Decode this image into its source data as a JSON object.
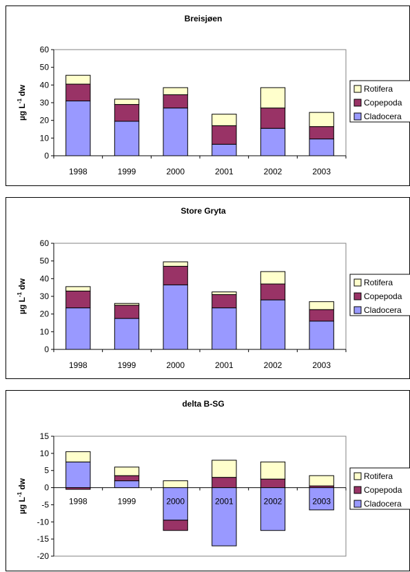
{
  "colors": {
    "rotifera": "#FFFFCC",
    "copepoda": "#993366",
    "cladocera": "#9999FF",
    "plot_bg": "#FFFFFF",
    "axis": "#808080"
  },
  "chart_data": [
    {
      "type": "bar",
      "stacked": true,
      "title": "Breisjøen",
      "ylabel": "µg L-1 dw",
      "ylabel_main": "µg L",
      "ylabel_sup": "-1",
      "ylabel_tail": " dw",
      "categories": [
        "1998",
        "1999",
        "2000",
        "2001",
        "2002",
        "2003"
      ],
      "ylim": [
        0,
        60
      ],
      "yticks": [
        0,
        10,
        20,
        30,
        40,
        50,
        60
      ],
      "legend_position": "right",
      "series": [
        {
          "name": "Cladocera",
          "values": [
            31,
            19.5,
            27,
            6.5,
            15.5,
            9.5
          ]
        },
        {
          "name": "Copepoda",
          "values": [
            9.5,
            9.5,
            7.5,
            10.5,
            11.5,
            7
          ]
        },
        {
          "name": "Rotifera",
          "values": [
            5,
            3,
            4,
            6.5,
            11.5,
            8
          ]
        }
      ]
    },
    {
      "type": "bar",
      "stacked": true,
      "title": "Store Gryta",
      "ylabel": "µg L-1 dw",
      "ylabel_main": "µg L",
      "ylabel_sup": "-1",
      "ylabel_tail": " dw",
      "categories": [
        "1998",
        "1999",
        "2000",
        "2001",
        "2002",
        "2003"
      ],
      "ylim": [
        0,
        60
      ],
      "yticks": [
        0,
        10,
        20,
        30,
        40,
        50,
        60
      ],
      "legend_position": "right",
      "series": [
        {
          "name": "Cladocera",
          "values": [
            23.5,
            17.5,
            36.5,
            23.5,
            28,
            16
          ]
        },
        {
          "name": "Copepoda",
          "values": [
            9.5,
            7.5,
            10.5,
            7.5,
            9,
            6.5
          ]
        },
        {
          "name": "Rotifera",
          "values": [
            2.5,
            1,
            2.5,
            1.5,
            7,
            4.5
          ]
        }
      ]
    },
    {
      "type": "bar",
      "stacked": true,
      "title": "delta B-SG",
      "ylabel": "µg L-1 dw",
      "ylabel_main": "µg L",
      "ylabel_sup": "-1",
      "ylabel_tail": " dw",
      "categories": [
        "1998",
        "1999",
        "2000",
        "2001",
        "2002",
        "2003"
      ],
      "ylim": [
        -20,
        15
      ],
      "yticks": [
        -20,
        -15,
        -10,
        -5,
        0,
        5,
        10,
        15
      ],
      "legend_position": "right",
      "series": [
        {
          "name": "Cladocera",
          "values": [
            7.5,
            2,
            -9.5,
            -17,
            -12.5,
            -6.5
          ]
        },
        {
          "name": "Copepoda",
          "values": [
            -0.5,
            1.5,
            -3,
            3,
            2.5,
            0.5
          ]
        },
        {
          "name": "Rotifera",
          "values": [
            3,
            2.5,
            2,
            5,
            5,
            3
          ]
        }
      ]
    }
  ]
}
